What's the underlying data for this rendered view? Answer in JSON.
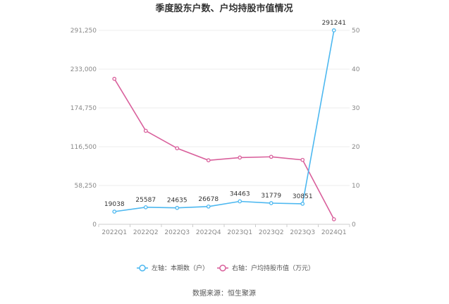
{
  "chart_data": {
    "type": "line",
    "title": "季度股东户数、户均持股市值情况",
    "categories": [
      "2022Q1",
      "2022Q2",
      "2022Q3",
      "2022Q4",
      "2023Q1",
      "2023Q2",
      "2023Q3",
      "2024Q1"
    ],
    "series": [
      {
        "name": "左轴：本期数（户）",
        "axis": "left",
        "color": "#4db8f0",
        "values": [
          19038,
          25587,
          24635,
          26678,
          34463,
          31779,
          30851,
          291241
        ],
        "labels": [
          "19038",
          "25587",
          "24635",
          "26678",
          "34463",
          "31779",
          "30851",
          "291241"
        ]
      },
      {
        "name": "右轴：户均持股市值（万元）",
        "axis": "right",
        "color": "#d9609c",
        "values": [
          37.5,
          24.1,
          19.6,
          16.5,
          17.2,
          17.4,
          16.6,
          1.3
        ]
      }
    ],
    "y_left": {
      "lim": [
        0,
        291250
      ],
      "ticks": [
        0,
        58250,
        116500,
        174750,
        233000,
        291250
      ],
      "tick_labels": [
        "0",
        "58,250",
        "116,500",
        "174,750",
        "233,000",
        "291,250"
      ]
    },
    "y_right": {
      "lim": [
        0,
        50
      ],
      "ticks": [
        0,
        10,
        20,
        30,
        40,
        50
      ],
      "tick_labels": [
        "0",
        "10",
        "20",
        "30",
        "40",
        "50"
      ]
    },
    "grid": true,
    "legend_position": "bottom"
  },
  "source_text": "数据来源：恒生聚源"
}
